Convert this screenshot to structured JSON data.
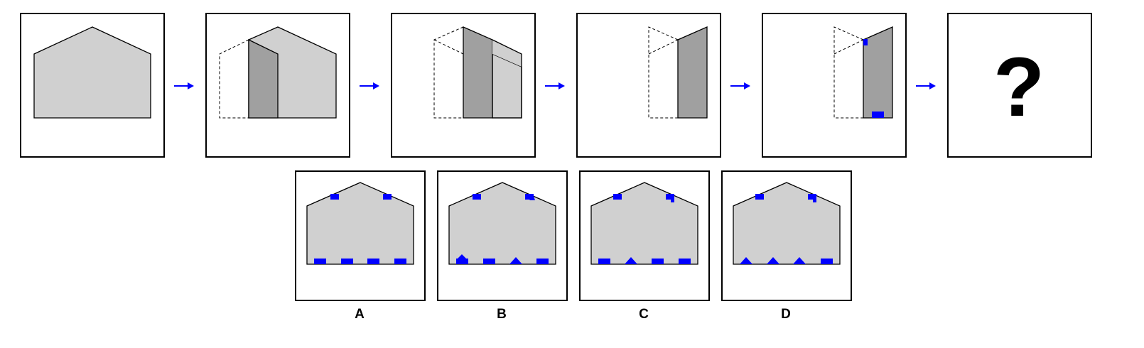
{
  "question_mark": "?",
  "options": [
    {
      "label": "A"
    },
    {
      "label": "B"
    },
    {
      "label": "C"
    },
    {
      "label": "D"
    }
  ],
  "colors": {
    "paper": "#d0d0d0",
    "paper_fold": "#a0a0a0",
    "cut_marks": "#0000ff",
    "arrow": "#0000ff",
    "outline": "#000000"
  }
}
